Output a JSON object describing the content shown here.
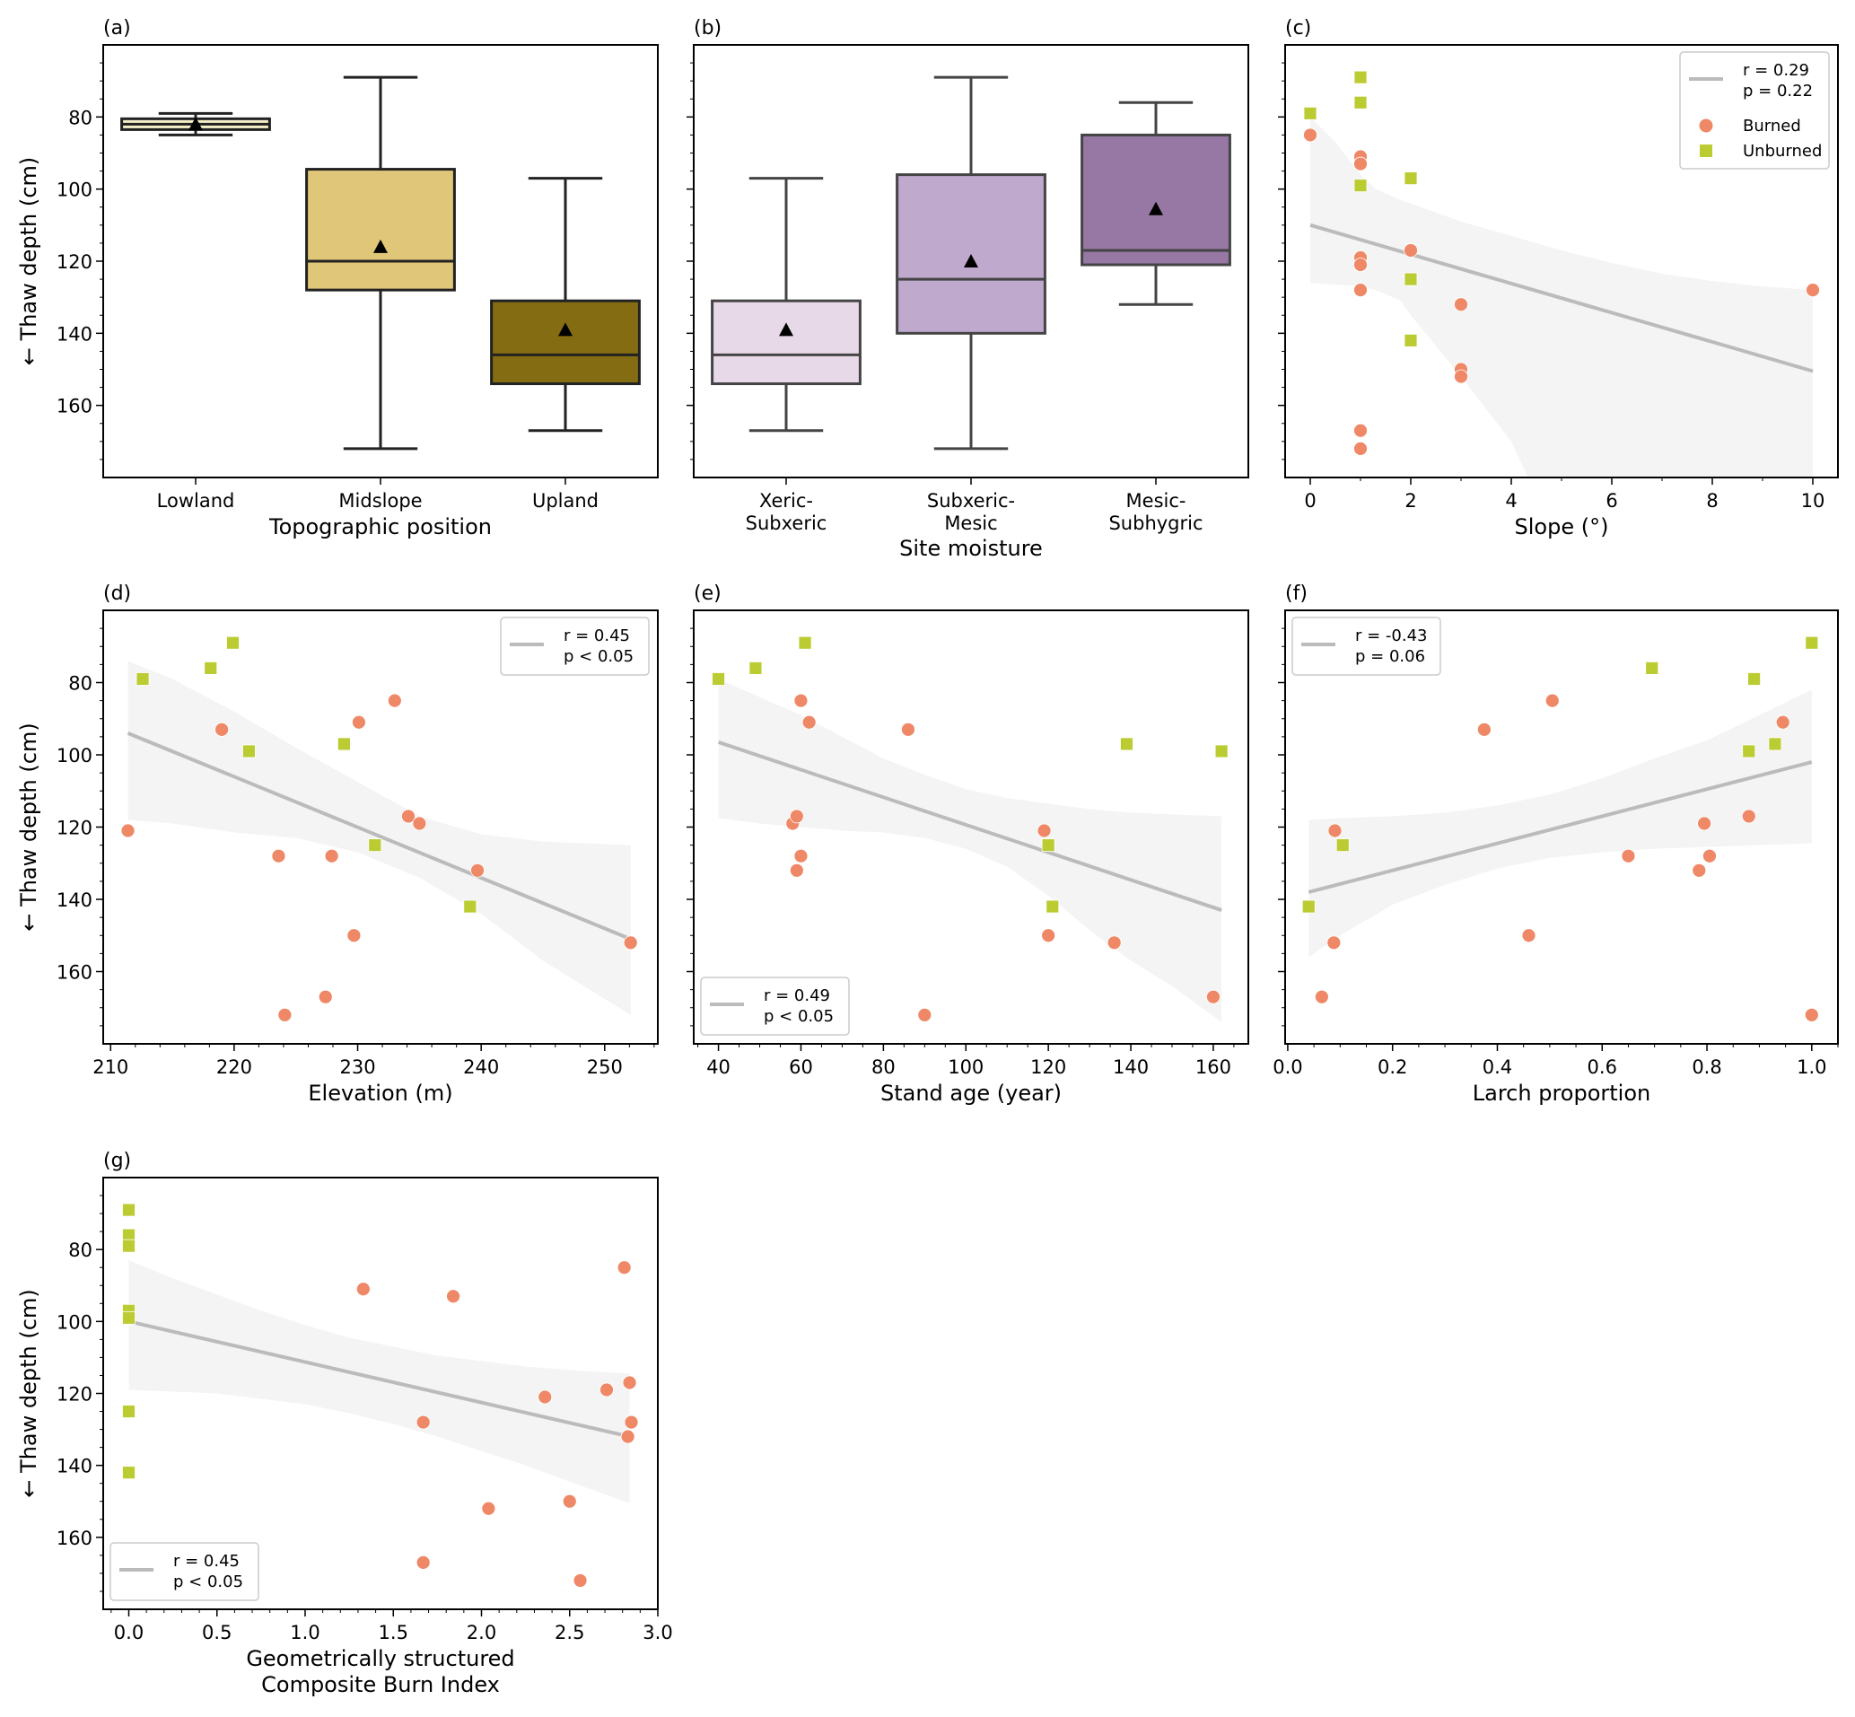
{
  "figure": {
    "ylabel": "← Thaw depth (cm)",
    "colors": {
      "burned": "#ee8866",
      "unburned": "#bbcc33",
      "fit_line": "#bbbbbb",
      "ci_band": "#f4f4f4",
      "box_edge": "#222222"
    }
  },
  "chart_data": [
    {
      "id": "a",
      "panel_label": "(a)",
      "type": "box",
      "xlabel": "Topographic position",
      "ylabel": "← Thaw depth (cm)",
      "y_inverted": true,
      "ylim": [
        60,
        180
      ],
      "yticks": [
        80,
        100,
        120,
        140,
        160
      ],
      "categories": [
        "Lowland",
        "Midslope",
        "Upland"
      ],
      "boxes": [
        {
          "label": "Lowland",
          "whisker_low": 79,
          "q1": 80.5,
          "median": 82,
          "q3": 83.5,
          "whisker_high": 85,
          "mean": 82,
          "color": "#f5f0c8"
        },
        {
          "label": "Midslope",
          "whisker_low": 69,
          "q1": 94.5,
          "median": 120,
          "q3": 128,
          "whisker_high": 172,
          "mean": 116,
          "color": "#dfc679"
        },
        {
          "label": "Upland",
          "whisker_low": 97,
          "q1": 131,
          "median": 146,
          "q3": 154,
          "whisker_high": 167,
          "mean": 139,
          "color": "#846c13"
        }
      ]
    },
    {
      "id": "b",
      "panel_label": "(b)",
      "type": "box",
      "xlabel": "Site moisture",
      "ylabel": "",
      "y_inverted": true,
      "ylim": [
        60,
        180
      ],
      "yticks": [
        80,
        100,
        120,
        140,
        160
      ],
      "categories": [
        "Xeric-\nSubxeric",
        "Subxeric-\nMesic",
        "Mesic-\nSubhygric"
      ],
      "boxes": [
        {
          "label": "Xeric-Subxeric",
          "whisker_low": 97,
          "q1": 131,
          "median": 146,
          "q3": 154,
          "whisker_high": 167,
          "mean": 139,
          "color": "#e8d9e8"
        },
        {
          "label": "Subxeric-Mesic",
          "whisker_low": 69,
          "q1": 96,
          "median": 125,
          "q3": 140,
          "whisker_high": 172,
          "mean": 120,
          "color": "#bfa9cd"
        },
        {
          "label": "Mesic-Subhygric",
          "whisker_low": 76,
          "q1": 85,
          "median": 117,
          "q3": 121,
          "whisker_high": 132,
          "mean": 105.5,
          "color": "#9778a5"
        }
      ]
    },
    {
      "id": "c",
      "panel_label": "(c)",
      "type": "scatter",
      "xlabel": "Slope (°)",
      "ylabel": "",
      "y_inverted": true,
      "ylim": [
        60,
        180
      ],
      "yticks": [
        80,
        100,
        120,
        140,
        160
      ],
      "xlim": [
        -0.5,
        10.5
      ],
      "xticks": [
        0,
        2,
        4,
        6,
        8,
        10
      ],
      "xminor": 1,
      "legend": {
        "position": "top-right",
        "r_text": "r = 0.29",
        "p_text": "p = 0.22",
        "show_markers": true,
        "burned": "Burned",
        "unburned": "Unburned"
      },
      "fit": {
        "x": [
          0,
          10
        ],
        "y": [
          110,
          150.5
        ]
      },
      "ci": {
        "x": [
          0,
          0.5,
          1,
          1.3,
          1.8,
          2,
          3,
          4,
          5,
          6,
          7,
          8,
          9,
          10
        ],
        "upper": [
          80,
          87,
          96,
          100,
          103,
          104,
          109,
          113,
          117,
          120.5,
          123.5,
          125.5,
          127,
          128
        ],
        "lower": [
          126,
          126.5,
          127,
          128,
          131,
          135,
          152,
          170,
          200,
          230,
          260,
          290,
          320,
          350
        ]
      },
      "burned": [
        [
          0,
          85
        ],
        [
          1,
          91
        ],
        [
          1,
          93
        ],
        [
          1,
          119
        ],
        [
          1,
          121
        ],
        [
          1,
          128
        ],
        [
          1,
          167
        ],
        [
          1,
          172
        ],
        [
          2,
          117
        ],
        [
          3,
          132
        ],
        [
          3,
          150
        ],
        [
          3,
          152
        ],
        [
          10,
          128
        ]
      ],
      "unburned": [
        [
          0,
          79
        ],
        [
          1,
          69
        ],
        [
          1,
          76
        ],
        [
          1,
          99
        ],
        [
          2,
          97
        ],
        [
          2,
          125
        ],
        [
          2,
          142
        ]
      ]
    },
    {
      "id": "d",
      "panel_label": "(d)",
      "type": "scatter",
      "xlabel": "Elevation (m)",
      "ylabel": "← Thaw depth (cm)",
      "y_inverted": true,
      "ylim": [
        60,
        180
      ],
      "yticks": [
        80,
        100,
        120,
        140,
        160
      ],
      "xlim": [
        209.4,
        254.3
      ],
      "xticks": [
        210,
        220,
        230,
        240,
        250
      ],
      "xminor": 2,
      "legend": {
        "position": "top-right",
        "r_text": "r = 0.45",
        "p_text": "p < 0.05",
        "show_markers": false
      },
      "fit": {
        "x": [
          211.4,
          252.1
        ],
        "y": [
          94,
          151
        ]
      },
      "ci": {
        "x": [
          211.4,
          215,
          220,
          225,
          230,
          235,
          240,
          245,
          252.1
        ],
        "upper": [
          74,
          79,
          88,
          98,
          107.5,
          117,
          122,
          124,
          125
        ],
        "lower": [
          118,
          119,
          121.5,
          123,
          127,
          134,
          144,
          157,
          172
        ]
      },
      "burned": [
        [
          211.4,
          121
        ],
        [
          219,
          93
        ],
        [
          223.6,
          128
        ],
        [
          224.1,
          172
        ],
        [
          227.4,
          167
        ],
        [
          227.9,
          128
        ],
        [
          229.7,
          150
        ],
        [
          230.1,
          91
        ],
        [
          233,
          85
        ],
        [
          234.1,
          117
        ],
        [
          235,
          119
        ],
        [
          239.7,
          132
        ],
        [
          252.1,
          152
        ]
      ],
      "unburned": [
        [
          212.6,
          79
        ],
        [
          218.1,
          76
        ],
        [
          219.9,
          69
        ],
        [
          221.2,
          99
        ],
        [
          228.9,
          97
        ],
        [
          231.4,
          125
        ],
        [
          239.1,
          142
        ]
      ]
    },
    {
      "id": "e",
      "panel_label": "(e)",
      "type": "scatter",
      "xlabel": "Stand age (year)",
      "ylabel": "",
      "y_inverted": true,
      "ylim": [
        60,
        180
      ],
      "yticks": [
        80,
        100,
        120,
        140,
        160
      ],
      "xlim": [
        34,
        168.5
      ],
      "xticks": [
        40,
        60,
        80,
        100,
        120,
        140,
        160
      ],
      "xminor": 5,
      "legend": {
        "position": "bottom-left",
        "r_text": "r = 0.49",
        "p_text": "p < 0.05",
        "show_markers": false
      },
      "fit": {
        "x": [
          40,
          162
        ],
        "y": [
          96.5,
          143
        ]
      },
      "ci": {
        "x": [
          40,
          50,
          60,
          70,
          80,
          90,
          100,
          110,
          120,
          130,
          140,
          150,
          162
        ],
        "upper": [
          79,
          84,
          89,
          95,
          101,
          105.5,
          109.5,
          112,
          113.5,
          115,
          116,
          116.5,
          117
        ],
        "lower": [
          117.5,
          119,
          120,
          121,
          121.5,
          123,
          126,
          131,
          139,
          148.5,
          157,
          164,
          174
        ]
      },
      "burned": [
        [
          58,
          119
        ],
        [
          59,
          117
        ],
        [
          59,
          132
        ],
        [
          60,
          85
        ],
        [
          60,
          128
        ],
        [
          62,
          91
        ],
        [
          86,
          93
        ],
        [
          90,
          172
        ],
        [
          119,
          121
        ],
        [
          120,
          150
        ],
        [
          136,
          152
        ],
        [
          160,
          167
        ]
      ],
      "unburned": [
        [
          40,
          79
        ],
        [
          49,
          76
        ],
        [
          61,
          69
        ],
        [
          120,
          125
        ],
        [
          121,
          142
        ],
        [
          139,
          97
        ],
        [
          162,
          99
        ]
      ]
    },
    {
      "id": "f",
      "panel_label": "(f)",
      "type": "scatter",
      "xlabel": "Larch proportion",
      "ylabel": "",
      "y_inverted": true,
      "ylim": [
        60,
        180
      ],
      "yticks": [
        80,
        100,
        120,
        140,
        160
      ],
      "xlim": [
        -0.005,
        1.05
      ],
      "xticks": [
        0.0,
        0.2,
        0.4,
        0.6,
        0.8,
        1.0
      ],
      "xminor": 0.05,
      "legend": {
        "position": "top-left",
        "r_text": "r = -0.43",
        "p_text": "p = 0.06",
        "show_markers": false
      },
      "fit": {
        "x": [
          0.04,
          1.0
        ],
        "y": [
          138,
          102
        ]
      },
      "ci": {
        "x": [
          0.04,
          0.1,
          0.2,
          0.3,
          0.4,
          0.5,
          0.6,
          0.7,
          0.8,
          0.9,
          1.0
        ],
        "upper": [
          118,
          117.5,
          117,
          116,
          114,
          111,
          106.5,
          101,
          96,
          89,
          82
        ],
        "lower": [
          156,
          150,
          141.5,
          136,
          131.5,
          128.5,
          127,
          126,
          125.5,
          125,
          124.5
        ]
      },
      "burned": [
        [
          0.065,
          167
        ],
        [
          0.088,
          152
        ],
        [
          0.09,
          121
        ],
        [
          0.375,
          93
        ],
        [
          0.46,
          150
        ],
        [
          0.505,
          85
        ],
        [
          0.65,
          128
        ],
        [
          0.785,
          132
        ],
        [
          0.795,
          119
        ],
        [
          0.805,
          128
        ],
        [
          0.88,
          117
        ],
        [
          0.945,
          91
        ],
        [
          1.0,
          172
        ]
      ],
      "unburned": [
        [
          0.04,
          142
        ],
        [
          0.105,
          125
        ],
        [
          0.695,
          76
        ],
        [
          0.88,
          99
        ],
        [
          0.89,
          79
        ],
        [
          0.93,
          97
        ],
        [
          1.0,
          69
        ]
      ]
    },
    {
      "id": "g",
      "panel_label": "(g)",
      "type": "scatter",
      "xlabel": "Geometrically structured\nComposite Burn Index",
      "ylabel": "← Thaw depth (cm)",
      "y_inverted": true,
      "ylim": [
        60,
        180
      ],
      "yticks": [
        80,
        100,
        120,
        140,
        160
      ],
      "xlim": [
        -0.145,
        3.0
      ],
      "xticks": [
        0.0,
        0.5,
        1.0,
        1.5,
        2.0,
        2.5,
        3.0
      ],
      "xtick_labels": [
        "0.0",
        "0.5",
        "1.0",
        "1.5",
        "2.0",
        "2.5",
        "3.0"
      ],
      "xminor": 0.1,
      "legend": {
        "position": "bottom-left",
        "r_text": "r = 0.45",
        "p_text": "p < 0.05",
        "show_markers": false
      },
      "fit": {
        "x": [
          0,
          2.84
        ],
        "y": [
          100,
          132
        ]
      },
      "ci": {
        "x": [
          0,
          0.25,
          0.5,
          0.75,
          1.0,
          1.25,
          1.5,
          1.75,
          2.0,
          2.25,
          2.5,
          2.84
        ],
        "upper": [
          83,
          88,
          92.5,
          97,
          101,
          104.5,
          107,
          109.5,
          111,
          112.5,
          113.5,
          114.5
        ],
        "lower": [
          119,
          119.5,
          120,
          121.5,
          123,
          125.5,
          128.5,
          132,
          136,
          140,
          144.5,
          150.5
        ]
      },
      "burned": [
        [
          1.33,
          91
        ],
        [
          1.67,
          128
        ],
        [
          1.67,
          167
        ],
        [
          1.84,
          93
        ],
        [
          2.04,
          152
        ],
        [
          2.36,
          121
        ],
        [
          2.5,
          150
        ],
        [
          2.56,
          172
        ],
        [
          2.71,
          119
        ],
        [
          2.81,
          85
        ],
        [
          2.83,
          132
        ],
        [
          2.84,
          117
        ],
        [
          2.85,
          128
        ]
      ],
      "unburned": [
        [
          0,
          69
        ],
        [
          0,
          76
        ],
        [
          0,
          79
        ],
        [
          0,
          97
        ],
        [
          0,
          99
        ],
        [
          0,
          125
        ],
        [
          0,
          142
        ]
      ]
    }
  ]
}
